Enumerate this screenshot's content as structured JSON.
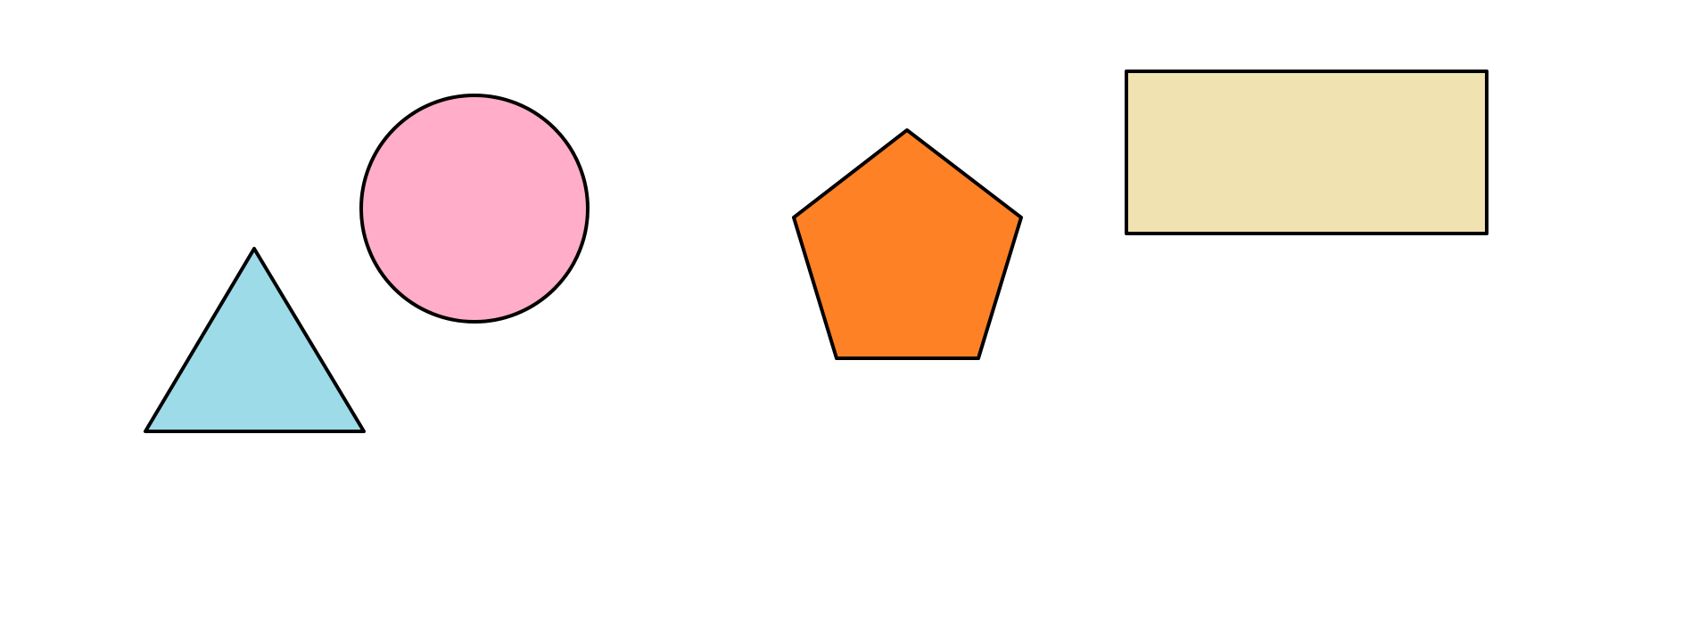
{
  "canvas": {
    "background": "#ffffff",
    "stroke_color": "#000000"
  },
  "shapes": [
    {
      "name": "triangle",
      "fill": "#9ddbe9"
    },
    {
      "name": "circle",
      "fill": "#ffadc9"
    },
    {
      "name": "pentagon",
      "fill": "#ff8126"
    },
    {
      "name": "rectangle",
      "fill": "#f0e3b1"
    }
  ]
}
